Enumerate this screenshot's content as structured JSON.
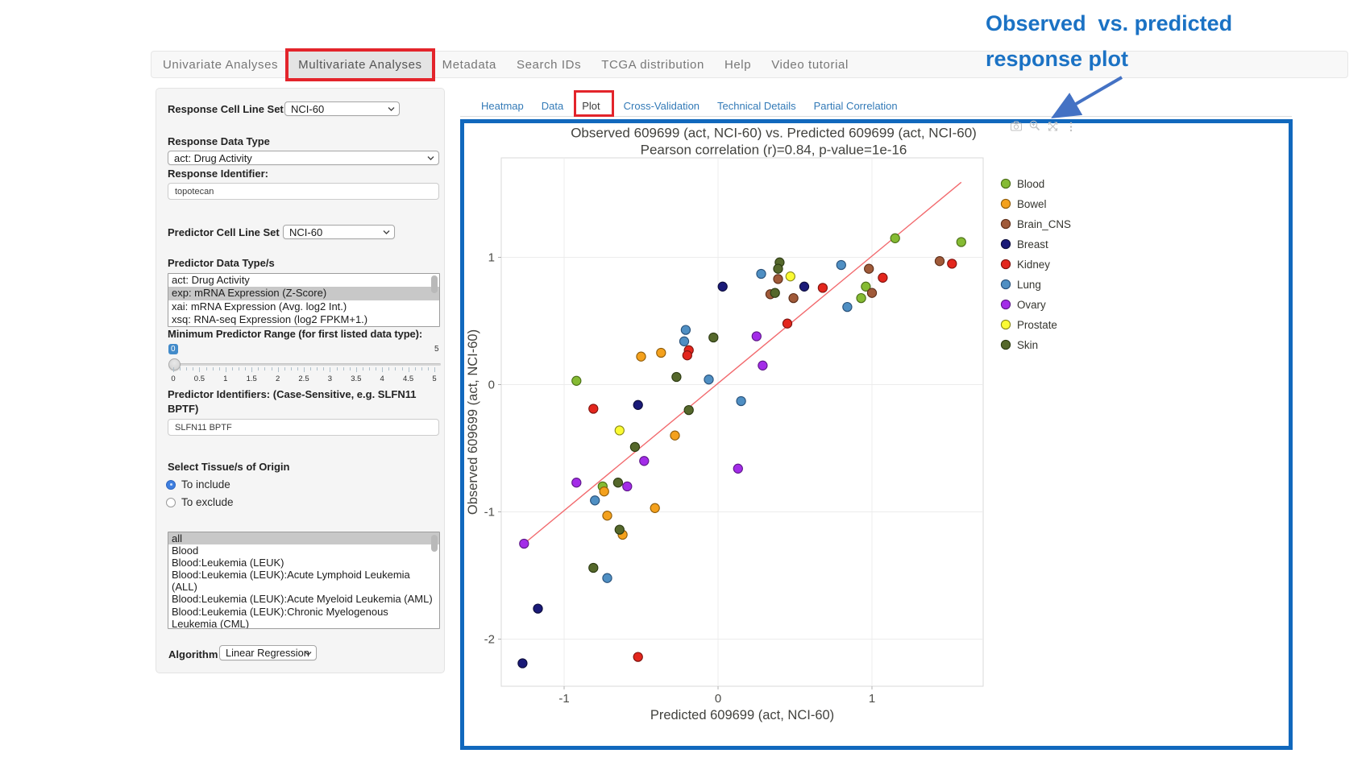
{
  "annotation": {
    "line1": "Observed  vs. predicted",
    "line2": "response plot",
    "color": "#1b72c4",
    "arrow_color": "#4472c4"
  },
  "navbar": {
    "items": [
      {
        "label": "Univariate Analyses",
        "active": false
      },
      {
        "label": "Multivariate Analyses",
        "active": true,
        "highlighted_with_red_box": true
      },
      {
        "label": "Metadata",
        "active": false
      },
      {
        "label": "Search IDs",
        "active": false
      },
      {
        "label": "TCGA distribution",
        "active": false
      },
      {
        "label": "Help",
        "active": false
      },
      {
        "label": "Video tutorial",
        "active": false
      }
    ]
  },
  "sidebar": {
    "response_cell_line_set": {
      "label": "Response Cell Line Set",
      "value": "NCI-60"
    },
    "response_data_type": {
      "label": "Response Data Type",
      "value": "act: Drug Activity"
    },
    "response_identifier": {
      "label": "Response Identifier:",
      "value": "topotecan"
    },
    "predictor_cell_line_set": {
      "label": "Predictor Cell Line Set",
      "value": "NCI-60"
    },
    "predictor_data_types": {
      "label": "Predictor Data Type/s",
      "options": [
        "act: Drug Activity",
        "exp: mRNA Expression (Z-Score)",
        "xai: mRNA Expression (Avg. log2 Int.)",
        "xsq: RNA-seq Expression (log2 FPKM+1.)"
      ],
      "selected": "exp: mRNA Expression (Z-Score)"
    },
    "min_predictor_range": {
      "label": "Minimum Predictor Range (for first listed data type):",
      "value": "0",
      "min": 0,
      "max": "5",
      "tick_labels": [
        "0",
        "0.5",
        "1",
        "1.5",
        "2",
        "2.5",
        "3",
        "3.5",
        "4",
        "4.5",
        "5"
      ]
    },
    "predictor_identifiers": {
      "label": "Predictor Identifiers: (Case-Sensitive, e.g. SLFN11 BPTF)",
      "value": "SLFN11 BPTF"
    },
    "tissue_origin": {
      "label": "Select Tissue/s of Origin",
      "options": [
        {
          "label": "To include",
          "selected": true
        },
        {
          "label": "To exclude",
          "selected": false
        }
      ]
    },
    "tissues": {
      "options": [
        "all",
        "Blood",
        "Blood:Leukemia (LEUK)",
        "Blood:Leukemia (LEUK):Acute Lymphoid Leukemia (ALL)",
        "Blood:Leukemia (LEUK):Acute Myeloid Leukemia (AML)",
        "Blood:Leukemia (LEUK):Chronic Myelogenous Leukemia (CML)"
      ],
      "selected": "all"
    },
    "algorithm": {
      "label": "Algorithm",
      "value": "Linear Regression"
    }
  },
  "tabs": {
    "items": [
      "Heatmap",
      "Data",
      "Plot",
      "Cross-Validation",
      "Technical Details",
      "Partial Correlation"
    ],
    "active": "Plot",
    "active_highlighted_with_red_box": true
  },
  "plot_toolbar": {
    "icons": [
      "camera-icon",
      "zoom-icon",
      "pan-axes-icon",
      "more-menu-icon"
    ],
    "color": "#c2c2c2"
  },
  "chart_data": {
    "type": "scatter",
    "title": "Observed 609699 (act, NCI-60) vs. Predicted 609699 (act, NCI-60)",
    "subtitle": "Pearson correlation (r)=0.84, p-value=1e-16",
    "xlabel": "Predicted 609699 (act, NCI-60)",
    "ylabel": "Observed 609699 (act, NCI-60)",
    "xlim": [
      -1.41,
      1.72
    ],
    "ylim": [
      -2.37,
      1.78
    ],
    "xticks": [
      -1,
      0,
      1
    ],
    "yticks": [
      -2,
      -1,
      0,
      1
    ],
    "grid": true,
    "legend_position": "right",
    "regression_line": {
      "x": [
        -1.26,
        1.58
      ],
      "y": [
        -1.25,
        1.59
      ],
      "color": "#f26a6e"
    },
    "series": [
      {
        "name": "Blood",
        "color": "#85bb33",
        "stroke": "#4a6d16",
        "points": [
          [
            1.15,
            1.15
          ],
          [
            1.58,
            1.12
          ],
          [
            0.96,
            0.77
          ],
          [
            0.93,
            0.68
          ],
          [
            -0.92,
            0.03
          ],
          [
            -0.75,
            -0.8
          ]
        ]
      },
      {
        "name": "Bowel",
        "color": "#f4a11d",
        "stroke": "#8f5c0a",
        "points": [
          [
            -0.37,
            0.25
          ],
          [
            -0.5,
            0.22
          ],
          [
            -0.28,
            -0.4
          ],
          [
            -0.74,
            -0.84
          ],
          [
            -0.41,
            -0.97
          ],
          [
            -0.72,
            -1.03
          ],
          [
            -0.62,
            -1.18
          ]
        ]
      },
      {
        "name": "Brain_CNS",
        "color": "#a05a39",
        "stroke": "#5e2f1a",
        "points": [
          [
            1.44,
            0.97
          ],
          [
            0.98,
            0.91
          ],
          [
            0.39,
            0.83
          ],
          [
            0.34,
            0.71
          ],
          [
            0.49,
            0.68
          ],
          [
            1.0,
            0.72
          ]
        ]
      },
      {
        "name": "Breast",
        "color": "#1a1a78",
        "stroke": "#0d0d3d",
        "points": [
          [
            0.03,
            0.77
          ],
          [
            0.56,
            0.77
          ],
          [
            -0.52,
            -0.16
          ],
          [
            -1.17,
            -1.76
          ],
          [
            -1.27,
            -2.19
          ]
        ]
      },
      {
        "name": "Kidney",
        "color": "#e3261d",
        "stroke": "#7f130e",
        "points": [
          [
            1.52,
            0.95
          ],
          [
            1.07,
            0.84
          ],
          [
            0.68,
            0.76
          ],
          [
            0.45,
            0.48
          ],
          [
            -0.19,
            0.27
          ],
          [
            -0.2,
            0.23
          ],
          [
            -0.81,
            -0.19
          ],
          [
            -0.52,
            -2.14
          ]
        ]
      },
      {
        "name": "Lung",
        "color": "#4f8fc3",
        "stroke": "#28517a",
        "points": [
          [
            0.8,
            0.94
          ],
          [
            0.28,
            0.87
          ],
          [
            -0.21,
            0.43
          ],
          [
            -0.22,
            0.34
          ],
          [
            0.84,
            0.61
          ],
          [
            -0.06,
            0.04
          ],
          [
            0.15,
            -0.13
          ],
          [
            -0.8,
            -0.91
          ],
          [
            -0.72,
            -1.52
          ]
        ]
      },
      {
        "name": "Ovary",
        "color": "#a32ce8",
        "stroke": "#5c1787",
        "points": [
          [
            0.25,
            0.38
          ],
          [
            0.29,
            0.15
          ],
          [
            -0.48,
            -0.6
          ],
          [
            0.13,
            -0.66
          ],
          [
            -0.92,
            -0.77
          ],
          [
            -0.59,
            -0.8
          ],
          [
            -1.26,
            -1.25
          ]
        ]
      },
      {
        "name": "Prostate",
        "color": "#fbfb33",
        "stroke": "#8a8a1a",
        "points": [
          [
            0.47,
            0.85
          ],
          [
            -0.64,
            -0.36
          ]
        ]
      },
      {
        "name": "Skin",
        "color": "#55682b",
        "stroke": "#2c3a12",
        "points": [
          [
            0.4,
            0.96
          ],
          [
            0.39,
            0.91
          ],
          [
            0.37,
            0.72
          ],
          [
            -0.03,
            0.37
          ],
          [
            -0.27,
            0.06
          ],
          [
            -0.19,
            -0.2
          ],
          [
            -0.54,
            -0.49
          ],
          [
            -0.65,
            -0.77
          ],
          [
            -0.64,
            -1.14
          ],
          [
            -0.81,
            -1.44
          ]
        ]
      }
    ]
  }
}
